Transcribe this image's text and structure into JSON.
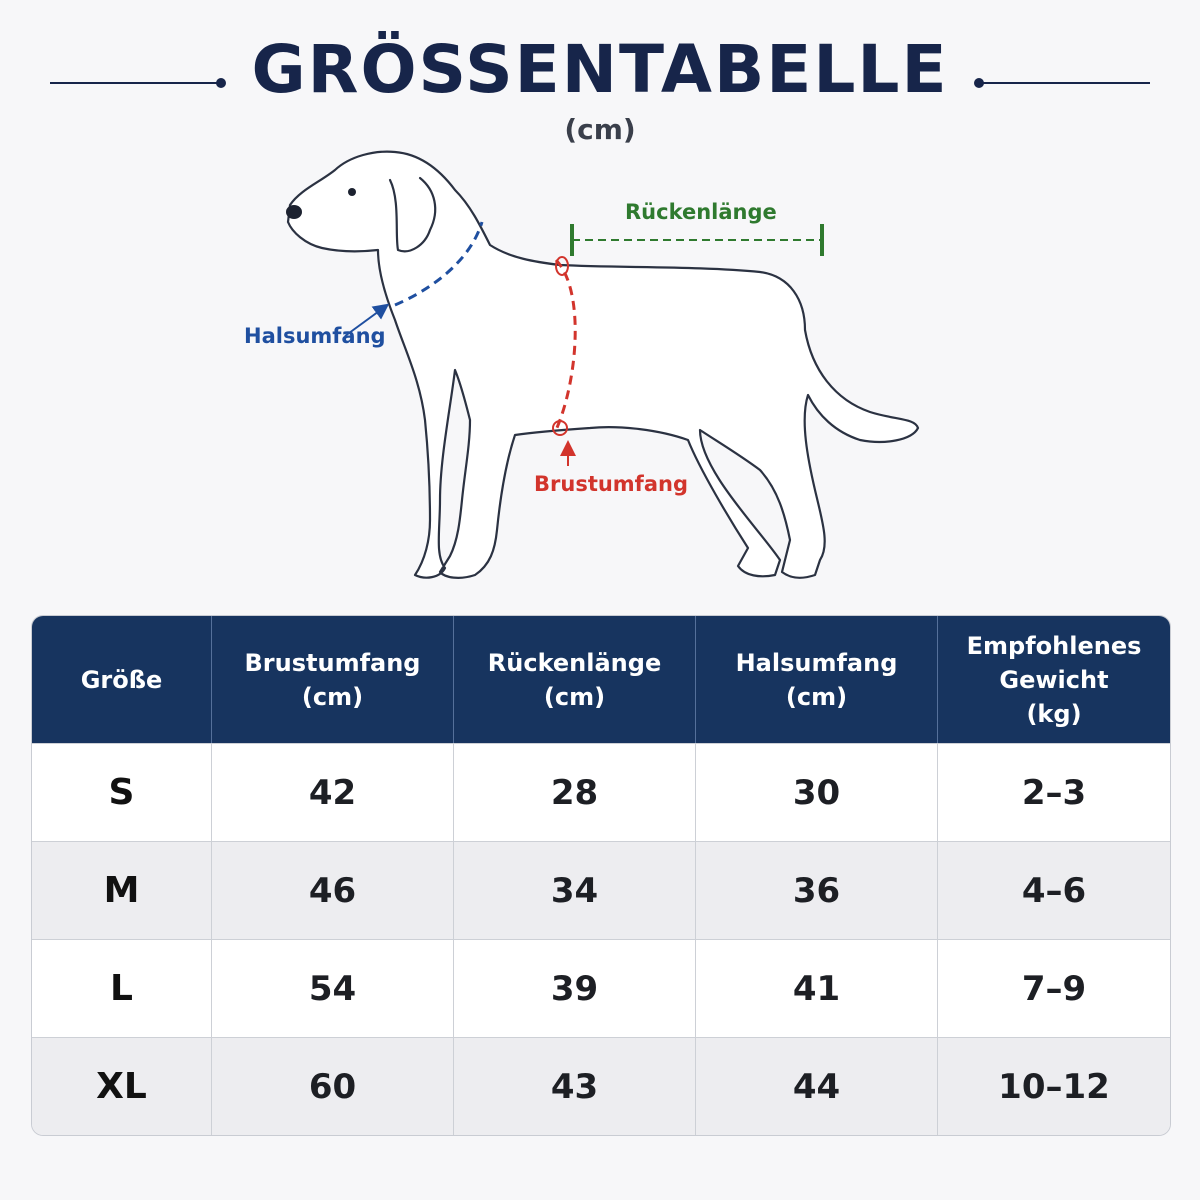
{
  "header": {
    "title": "GRÖSSENTABELLE",
    "unit": "(cm)"
  },
  "diagram": {
    "neck_label": "Halsumfang",
    "back_label": "Rückenlänge",
    "chest_label": "Brustumfang",
    "colors": {
      "neck": "#1f4fa0",
      "back": "#2f7a2f",
      "chest": "#d2342c"
    }
  },
  "table": {
    "headers": [
      [
        "Größe"
      ],
      [
        "Brustumfang",
        "(cm)"
      ],
      [
        "Rückenlänge",
        "(cm)"
      ],
      [
        "Halsumfang",
        "(cm)"
      ],
      [
        "Empfohlenes",
        "Gewicht",
        "(kg)"
      ]
    ],
    "rows": [
      [
        "S",
        "42",
        "28",
        "30",
        "2–3"
      ],
      [
        "M",
        "46",
        "34",
        "36",
        "4–6"
      ],
      [
        "L",
        "54",
        "39",
        "41",
        "7–9"
      ],
      [
        "XL",
        "60",
        "43",
        "44",
        "10–12"
      ]
    ]
  }
}
